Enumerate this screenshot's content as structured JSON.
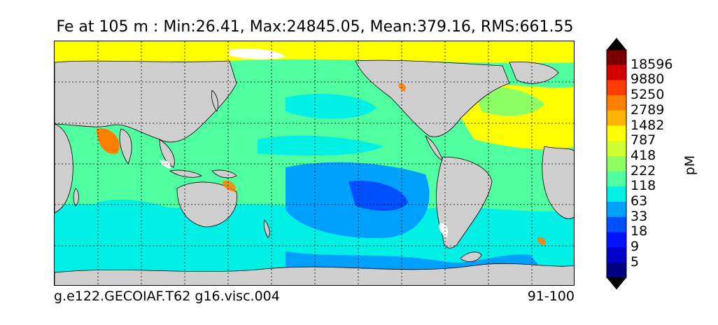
{
  "title": "Fe at 105 m : Min:26.41, Max:24845.05, Mean:379.16, RMS:661.55",
  "footer": {
    "left": "g.e122.GECOIAF.T62 g16.visc.004",
    "right": "91-100"
  },
  "colorbar": {
    "units": "pM",
    "labels": [
      "18596",
      "9880",
      "5250",
      "2789",
      "1482",
      "787",
      "418",
      "222",
      "118",
      "63",
      "33",
      "18",
      "9",
      "5"
    ],
    "colors": [
      "#7a0000",
      "#d40000",
      "#ff3c00",
      "#ff8000",
      "#ffb400",
      "#ffff00",
      "#d2ff32",
      "#8cff64",
      "#50ffa0",
      "#00f0e6",
      "#00a0ff",
      "#0050ff",
      "#0014ff",
      "#0000c8",
      "#000080"
    ],
    "over_color": "#000000",
    "under_color": "#000000"
  },
  "map": {
    "land_color": "#cfcfcf",
    "no_data_color": "#ffffff",
    "gridlines": "dotted"
  }
}
